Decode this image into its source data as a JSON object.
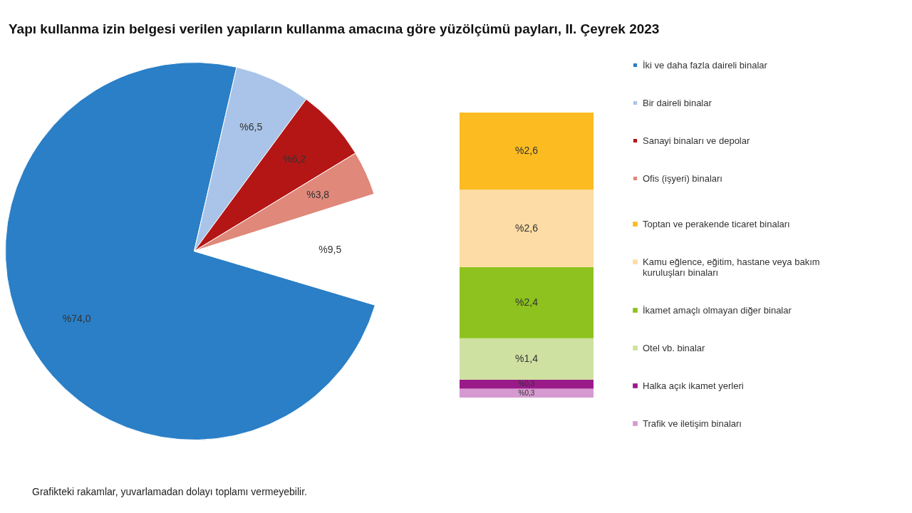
{
  "chart_data": [
    {
      "type": "pie",
      "title": "Yapı kullanma izin belgesi verilen yapıların kullanma amacına göre yüzölçümü payları, II. Çeyrek 2023",
      "categories": [
        "İki ve daha fazla daireli binalar",
        "Bir daireli binalar",
        "Sanayi binaları ve depolar",
        "Ofis (işyeri) binaları",
        null
      ],
      "values": [
        74.0,
        6.5,
        6.2,
        3.8,
        9.5
      ],
      "colors": [
        "#2a7fc7",
        "#a9c4e8",
        "#b41616",
        "#e0887a",
        "#ffffff"
      ],
      "value_labels": [
        "%74,0",
        "%6,5",
        "%6,2",
        "%3,8",
        "%9,5"
      ],
      "legend": "right",
      "annotations": [
        "Grafikteki rakamlar, yuvarlamadan dolayı toplamı vermeyebilir."
      ]
    },
    {
      "type": "bar",
      "stacked": true,
      "categories": [
        null
      ],
      "legend": "right",
      "series": [
        {
          "name": "Trafik ve iletişim binaları",
          "color": "#d69ad0",
          "values": [
            0.3
          ],
          "value_labels": [
            "%0,3"
          ]
        },
        {
          "name": "Halka açık ikamet yerleri",
          "color": "#9a1a8a",
          "values": [
            0.3
          ],
          "value_labels": [
            "%0,3"
          ]
        },
        {
          "name": "Otel vb. binalar",
          "color": "#cfe1a1",
          "values": [
            1.4
          ],
          "value_labels": [
            "%1,4"
          ]
        },
        {
          "name": "İkamet amaçlı olmayan diğer binalar",
          "color": "#8dc21f",
          "values": [
            2.4
          ],
          "value_labels": [
            "%2,4"
          ]
        },
        {
          "name": "Kamu eğlence, eğitim, hastane veya bakım kuruluşları binaları",
          "color": "#fddca5",
          "values": [
            2.6
          ],
          "value_labels": [
            "%2,6"
          ]
        },
        {
          "name": "Toptan ve perakende ticaret binaları",
          "color": "#fbbb21",
          "values": [
            2.6
          ],
          "value_labels": [
            "%2,6"
          ]
        }
      ]
    }
  ]
}
